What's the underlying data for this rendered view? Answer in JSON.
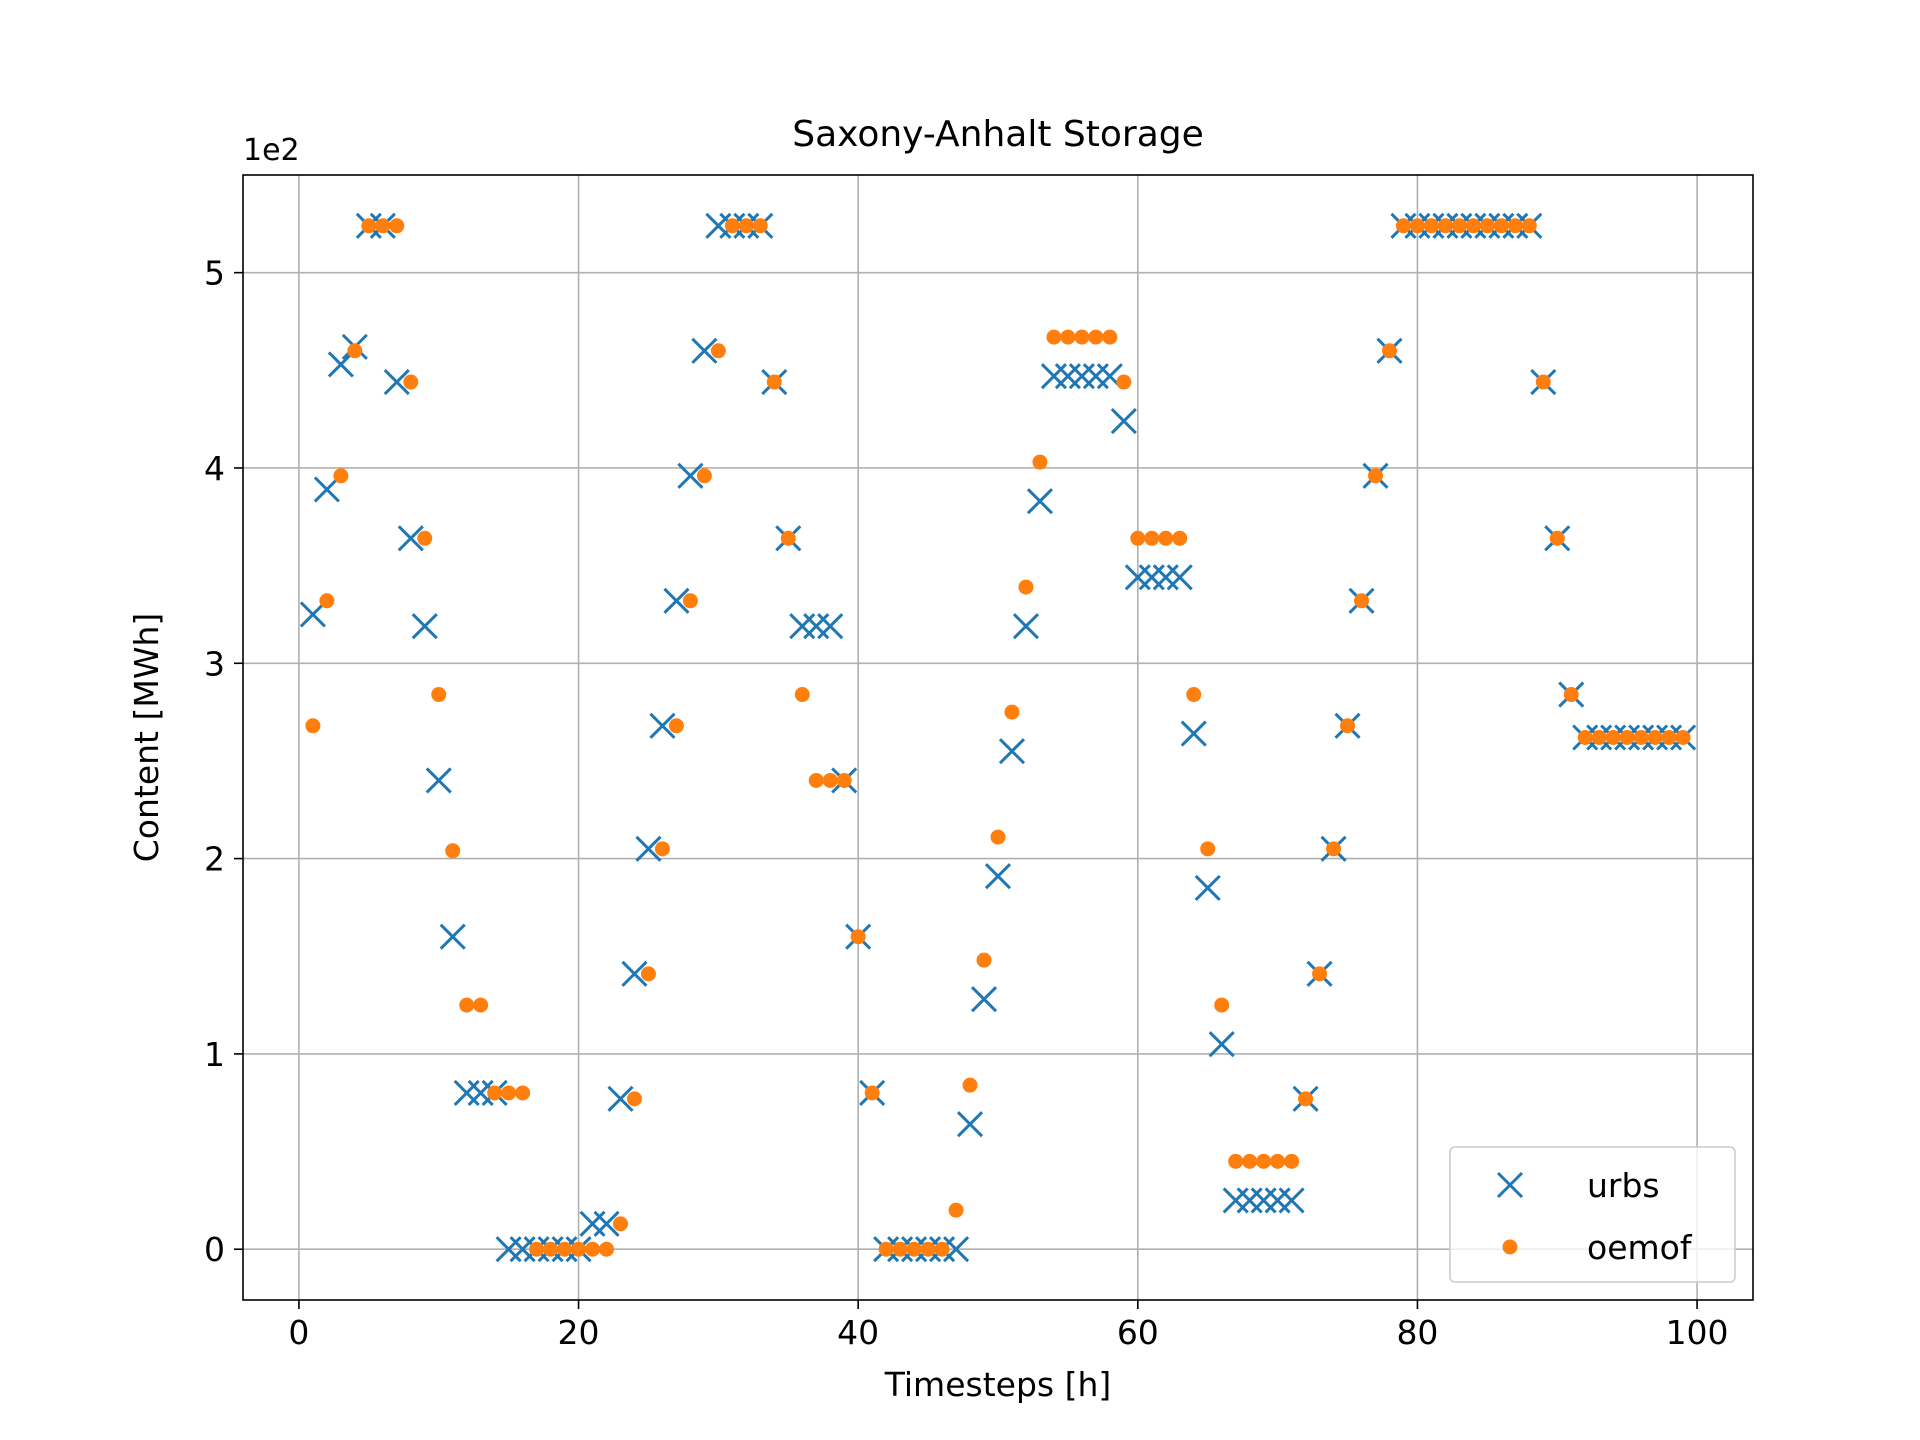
{
  "chart_data": {
    "type": "scatter",
    "title": "Saxony-Anhalt Storage",
    "xlabel": "Timesteps [h]",
    "ylabel": "Content [MWh]",
    "y_offset_label": "1e2",
    "xlim": [
      -4,
      104
    ],
    "ylim": [
      -0.26,
      5.5
    ],
    "xticks": [
      0,
      20,
      40,
      60,
      80,
      100
    ],
    "yticks": [
      0,
      1,
      2,
      3,
      4,
      5
    ],
    "grid": true,
    "legend_position": "lower-right",
    "series": [
      {
        "name": "urbs",
        "marker": "x",
        "color": "#1f77b4",
        "x": [
          1,
          2,
          3,
          4,
          5,
          6,
          7,
          8,
          9,
          10,
          11,
          12,
          13,
          14,
          15,
          16,
          17,
          18,
          19,
          20,
          21,
          22,
          23,
          24,
          25,
          26,
          27,
          28,
          29,
          30,
          31,
          32,
          33,
          34,
          35,
          36,
          37,
          38,
          39,
          40,
          41,
          42,
          43,
          44,
          45,
          46,
          47,
          48,
          49,
          50,
          51,
          52,
          53,
          54,
          55,
          56,
          57,
          58,
          59,
          60,
          61,
          62,
          63,
          64,
          65,
          66,
          67,
          68,
          69,
          70,
          71,
          72,
          73,
          74,
          75,
          76,
          77,
          78,
          79,
          80,
          81,
          82,
          83,
          84,
          85,
          86,
          87,
          88,
          89,
          90,
          91,
          92,
          93,
          94,
          95,
          96,
          97,
          98,
          99
        ],
        "y": [
          3.25,
          3.89,
          4.53,
          4.62,
          5.24,
          5.24,
          4.44,
          3.64,
          3.19,
          2.4,
          1.6,
          0.8,
          0.8,
          0.8,
          0.0,
          0.0,
          0.0,
          0.0,
          0.0,
          0.0,
          0.13,
          0.13,
          0.77,
          1.41,
          2.05,
          2.68,
          3.32,
          3.96,
          4.6,
          5.24,
          5.24,
          5.24,
          5.24,
          4.44,
          3.64,
          3.19,
          3.19,
          3.19,
          2.4,
          1.6,
          0.8,
          0.0,
          0.0,
          0.0,
          0.0,
          0.0,
          0.0,
          0.64,
          1.28,
          1.91,
          2.55,
          3.19,
          3.83,
          4.47,
          4.47,
          4.47,
          4.47,
          4.47,
          4.24,
          3.44,
          3.44,
          3.44,
          3.44,
          2.64,
          1.85,
          1.05,
          0.25,
          0.25,
          0.25,
          0.25,
          0.25,
          0.77,
          1.41,
          2.05,
          2.68,
          3.32,
          3.96,
          4.6,
          5.24,
          5.24,
          5.24,
          5.24,
          5.24,
          5.24,
          5.24,
          5.24,
          5.24,
          5.24,
          4.44,
          3.64,
          2.84,
          2.62,
          2.62,
          2.62,
          2.62,
          2.62,
          2.62,
          2.62,
          2.62
        ]
      },
      {
        "name": "oemof",
        "marker": "o",
        "color": "#ff7f0e",
        "x": [
          1,
          2,
          3,
          4,
          5,
          6,
          7,
          8,
          9,
          10,
          11,
          12,
          13,
          14,
          15,
          16,
          17,
          18,
          19,
          20,
          21,
          22,
          23,
          24,
          25,
          26,
          27,
          28,
          29,
          30,
          31,
          32,
          33,
          34,
          35,
          36,
          37,
          38,
          39,
          40,
          41,
          42,
          43,
          44,
          45,
          46,
          47,
          48,
          49,
          50,
          51,
          52,
          53,
          54,
          55,
          56,
          57,
          58,
          59,
          60,
          61,
          62,
          63,
          64,
          65,
          66,
          67,
          68,
          69,
          70,
          71,
          72,
          73,
          74,
          75,
          76,
          77,
          78,
          79,
          80,
          81,
          82,
          83,
          84,
          85,
          86,
          87,
          88,
          89,
          90,
          91,
          92,
          93,
          94,
          95,
          96,
          97,
          98,
          99
        ],
        "y": [
          2.68,
          3.32,
          3.96,
          4.6,
          5.24,
          5.24,
          5.24,
          4.44,
          3.64,
          2.84,
          2.04,
          1.25,
          1.25,
          0.8,
          0.8,
          0.8,
          0.0,
          0.0,
          0.0,
          0.0,
          0.0,
          0.0,
          0.13,
          0.77,
          1.41,
          2.05,
          2.68,
          3.32,
          3.96,
          4.6,
          5.24,
          5.24,
          5.24,
          4.44,
          3.64,
          2.84,
          2.4,
          2.4,
          2.4,
          1.6,
          0.8,
          0.0,
          0.0,
          0.0,
          0.0,
          0.0,
          0.2,
          0.84,
          1.48,
          2.11,
          2.75,
          3.39,
          4.03,
          4.67,
          4.67,
          4.67,
          4.67,
          4.67,
          4.44,
          3.64,
          3.64,
          3.64,
          3.64,
          2.84,
          2.05,
          1.25,
          0.45,
          0.45,
          0.45,
          0.45,
          0.45,
          0.77,
          1.41,
          2.05,
          2.68,
          3.32,
          3.96,
          4.6,
          5.24,
          5.24,
          5.24,
          5.24,
          5.24,
          5.24,
          5.24,
          5.24,
          5.24,
          5.24,
          4.44,
          3.64,
          2.84,
          2.62,
          2.62,
          2.62,
          2.62,
          2.62,
          2.62,
          2.62,
          2.62
        ]
      }
    ]
  }
}
